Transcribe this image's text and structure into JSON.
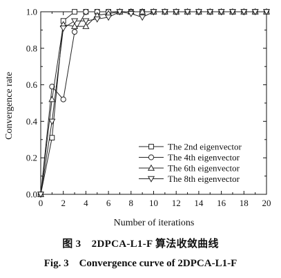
{
  "chart_data": {
    "type": "line",
    "xlabel": "Number of iterations",
    "ylabel": "Convergence rate",
    "xlim": [
      0,
      20
    ],
    "ylim": [
      0,
      1.0
    ],
    "xticks": [
      0,
      2,
      4,
      6,
      8,
      10,
      12,
      14,
      16,
      18,
      20
    ],
    "yticks": [
      0.0,
      0.2,
      0.4,
      0.6,
      0.8,
      1.0
    ],
    "xtick_labels": [
      "0",
      "2",
      "4",
      "6",
      "8",
      "10",
      "12",
      "14",
      "16",
      "18",
      "20"
    ],
    "ytick_labels": [
      "0.0",
      "0.2",
      "0.4",
      "0.6",
      "0.8",
      "1.0"
    ],
    "legend_position": "bottom-right",
    "grid": false,
    "series": [
      {
        "name": "The 2nd eigenvector",
        "marker": "square",
        "x": [
          0,
          1,
          2,
          3,
          4,
          5,
          6,
          7,
          8,
          9,
          10,
          11,
          12,
          13,
          14,
          15,
          16,
          17,
          18,
          19,
          20
        ],
        "y": [
          0.0,
          0.31,
          0.95,
          1.0,
          1.0,
          1.0,
          1.0,
          1.0,
          1.0,
          1.0,
          1.0,
          1.0,
          1.0,
          1.0,
          1.0,
          1.0,
          1.0,
          1.0,
          1.0,
          1.0,
          1.0
        ]
      },
      {
        "name": "The 4th eigenvector",
        "marker": "circle",
        "x": [
          0,
          1,
          2,
          3,
          4,
          5,
          6,
          7,
          8,
          9,
          10,
          11,
          12,
          13,
          14,
          15,
          16,
          17,
          18,
          19,
          20
        ],
        "y": [
          0.0,
          0.59,
          0.52,
          0.89,
          1.0,
          1.0,
          1.0,
          1.0,
          1.0,
          1.0,
          1.0,
          1.0,
          1.0,
          1.0,
          1.0,
          1.0,
          1.0,
          1.0,
          1.0,
          1.0,
          1.0
        ]
      },
      {
        "name": "The 6th eigenvector",
        "marker": "triangle-up",
        "x": [
          0,
          1,
          2,
          3,
          4,
          5,
          6,
          7,
          8,
          9,
          10,
          11,
          12,
          13,
          14,
          15,
          16,
          17,
          18,
          19,
          20
        ],
        "y": [
          0.0,
          0.52,
          0.93,
          0.92,
          0.92,
          0.98,
          0.99,
          1.0,
          1.0,
          1.0,
          1.0,
          1.0,
          1.0,
          1.0,
          1.0,
          1.0,
          1.0,
          1.0,
          1.0,
          1.0,
          1.0
        ]
      },
      {
        "name": "The 8th eigenvector",
        "marker": "triangle-down",
        "x": [
          0,
          1,
          2,
          3,
          4,
          5,
          6,
          7,
          8,
          9,
          10,
          11,
          12,
          13,
          14,
          15,
          16,
          17,
          18,
          19,
          20
        ],
        "y": [
          0.0,
          0.4,
          0.91,
          0.95,
          0.95,
          0.96,
          0.97,
          1.0,
          0.99,
          0.97,
          1.0,
          1.0,
          1.0,
          1.0,
          1.0,
          1.0,
          1.0,
          1.0,
          1.0,
          1.0,
          1.0
        ]
      }
    ]
  },
  "caption": {
    "line1": "图 3　2DPCA-L1-F 算法收敛曲线",
    "line2": "Fig. 3　Convergence curve of 2DPCA-L1-F"
  }
}
